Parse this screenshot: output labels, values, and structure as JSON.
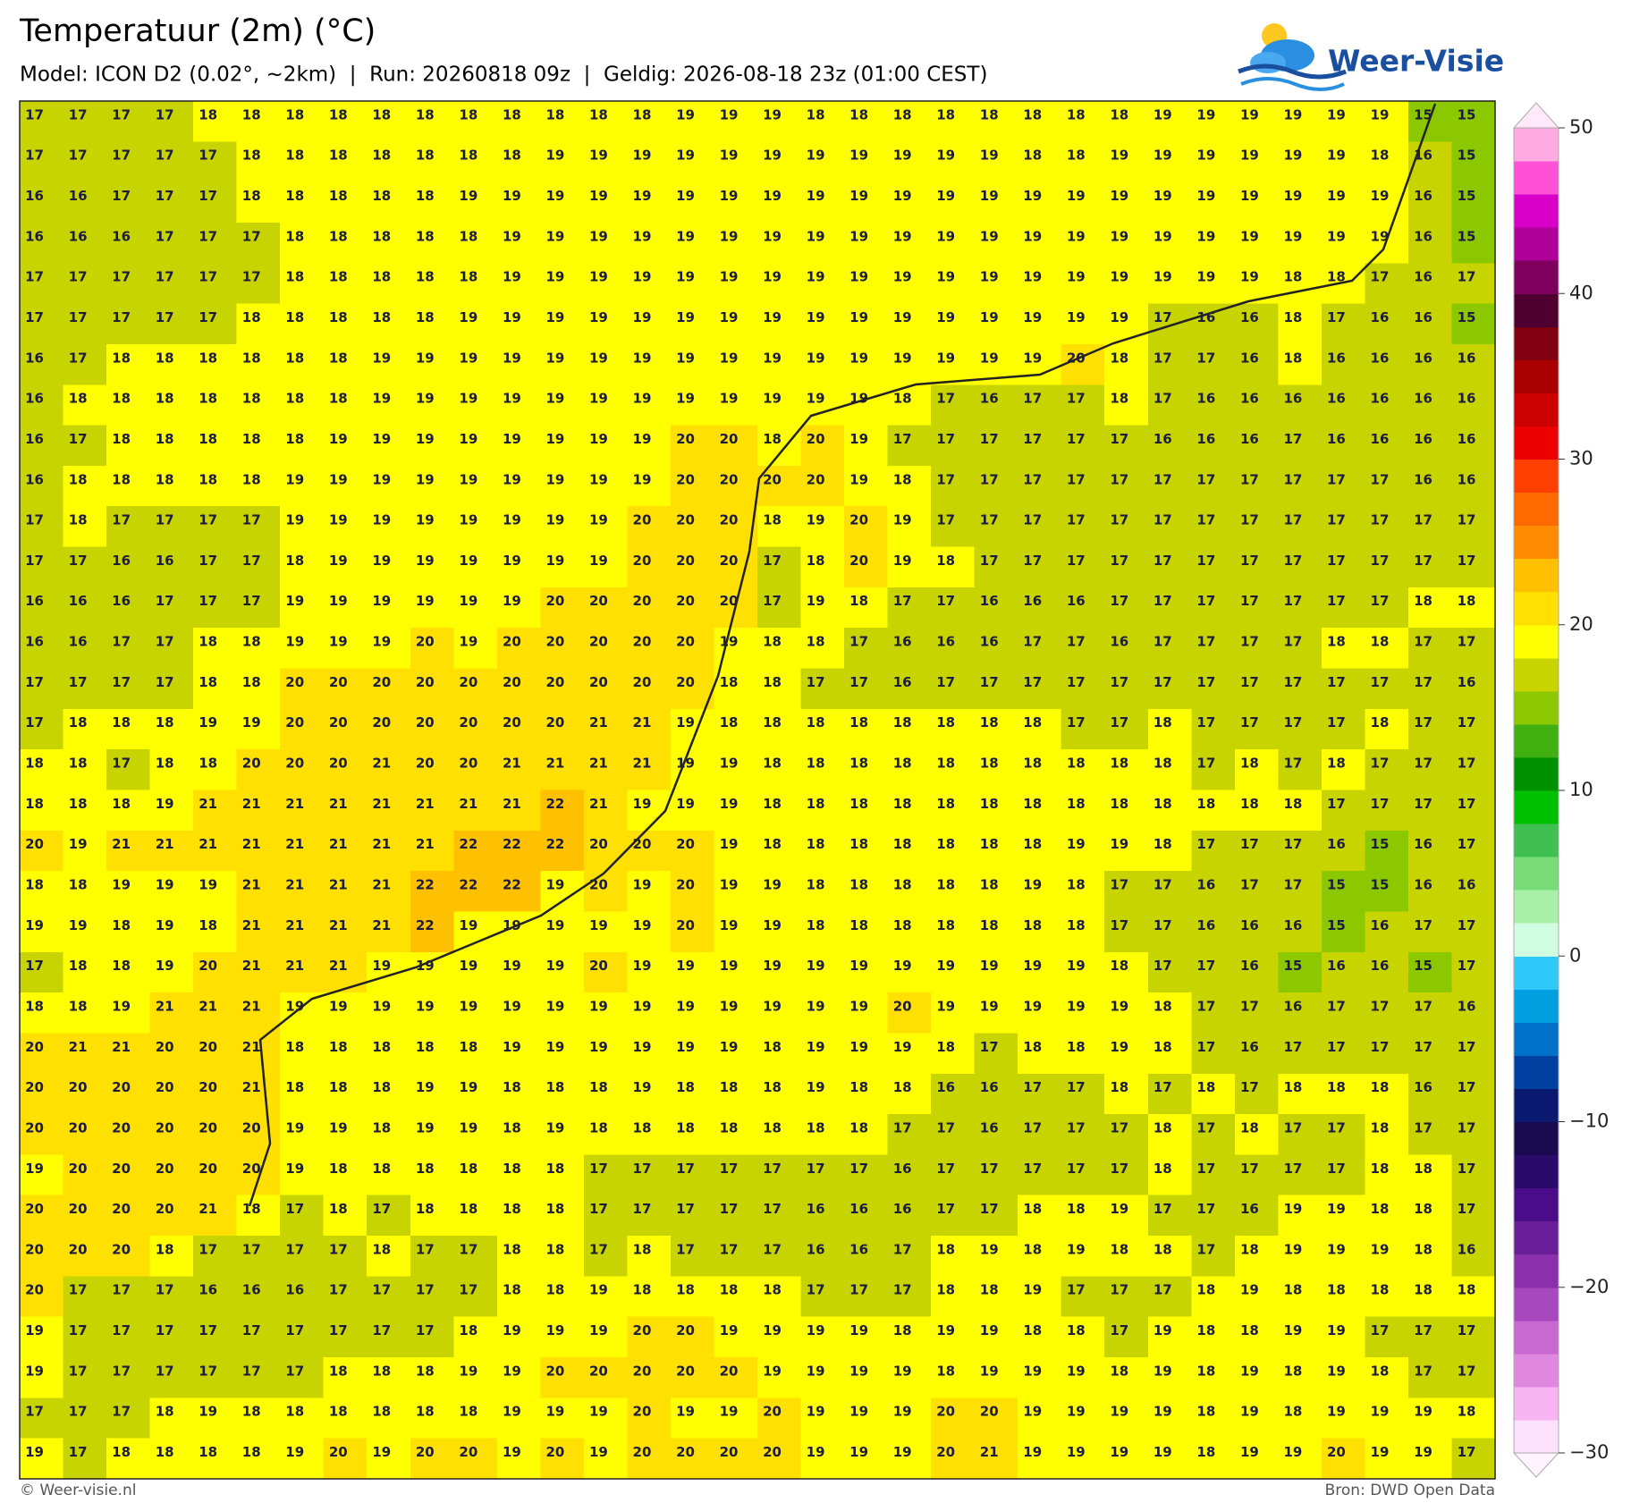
{
  "header": {
    "title": "Temperatuur (2m) (°C)",
    "subtitle": "Model: ICON D2 (0.02°, ~2km)  |  Run: 20260818 09z  |  Geldig: 2026-08-18 23z (01:00 CEST)",
    "logo": "Weer-Visie"
  },
  "chart_data": {
    "type": "heatmap",
    "values": [
      [
        17,
        17,
        17,
        17,
        18,
        18,
        18,
        18,
        18,
        18,
        18,
        18,
        18,
        18,
        18,
        19,
        19,
        19,
        18,
        18,
        18,
        18,
        18,
        18,
        18,
        18,
        19,
        19,
        19,
        19,
        19,
        19,
        15,
        15
      ],
      [
        17,
        17,
        17,
        17,
        17,
        18,
        18,
        18,
        18,
        18,
        18,
        18,
        19,
        19,
        19,
        19,
        19,
        19,
        19,
        19,
        19,
        19,
        19,
        18,
        18,
        19,
        19,
        19,
        19,
        19,
        19,
        18,
        16,
        15
      ],
      [
        16,
        16,
        17,
        17,
        17,
        18,
        18,
        18,
        18,
        18,
        19,
        19,
        19,
        19,
        19,
        19,
        19,
        19,
        19,
        19,
        19,
        19,
        19,
        19,
        19,
        19,
        19,
        19,
        19,
        19,
        19,
        19,
        16,
        15
      ],
      [
        16,
        16,
        16,
        17,
        17,
        17,
        18,
        18,
        18,
        18,
        18,
        19,
        19,
        19,
        19,
        19,
        19,
        19,
        19,
        19,
        19,
        19,
        19,
        19,
        19,
        19,
        19,
        19,
        19,
        19,
        19,
        19,
        16,
        15
      ],
      [
        17,
        17,
        17,
        17,
        17,
        17,
        18,
        18,
        18,
        18,
        18,
        19,
        19,
        19,
        19,
        19,
        19,
        19,
        19,
        19,
        19,
        19,
        19,
        19,
        19,
        19,
        19,
        19,
        19,
        18,
        18,
        17,
        16,
        17
      ],
      [
        17,
        17,
        17,
        17,
        17,
        18,
        18,
        18,
        18,
        18,
        19,
        19,
        19,
        19,
        19,
        19,
        19,
        19,
        19,
        19,
        19,
        19,
        19,
        19,
        19,
        19,
        17,
        16,
        16,
        18,
        17,
        16,
        16,
        15
      ],
      [
        16,
        17,
        18,
        18,
        18,
        18,
        18,
        18,
        19,
        19,
        19,
        19,
        19,
        19,
        19,
        19,
        19,
        19,
        19,
        19,
        19,
        19,
        19,
        19,
        20,
        18,
        17,
        17,
        16,
        18,
        16,
        16,
        16,
        16
      ],
      [
        16,
        18,
        18,
        18,
        18,
        18,
        18,
        18,
        19,
        19,
        19,
        19,
        19,
        19,
        19,
        19,
        19,
        19,
        19,
        19,
        18,
        17,
        16,
        17,
        17,
        18,
        17,
        16,
        16,
        16,
        16,
        16,
        16,
        16
      ],
      [
        16,
        17,
        18,
        18,
        18,
        18,
        18,
        19,
        19,
        19,
        19,
        19,
        19,
        19,
        19,
        20,
        20,
        18,
        20,
        19,
        17,
        17,
        17,
        17,
        17,
        17,
        16,
        16,
        16,
        17,
        16,
        16,
        16,
        16
      ],
      [
        16,
        18,
        18,
        18,
        18,
        18,
        19,
        19,
        19,
        19,
        19,
        19,
        19,
        19,
        19,
        20,
        20,
        20,
        20,
        19,
        18,
        17,
        17,
        17,
        17,
        17,
        17,
        17,
        17,
        17,
        17,
        17,
        16,
        16
      ],
      [
        17,
        18,
        17,
        17,
        17,
        17,
        19,
        19,
        19,
        19,
        19,
        19,
        19,
        19,
        20,
        20,
        20,
        18,
        19,
        20,
        19,
        17,
        17,
        17,
        17,
        17,
        17,
        17,
        17,
        17,
        17,
        17,
        17,
        17
      ],
      [
        17,
        17,
        16,
        16,
        17,
        17,
        18,
        19,
        19,
        19,
        19,
        19,
        19,
        19,
        20,
        20,
        20,
        17,
        18,
        20,
        19,
        18,
        17,
        17,
        17,
        17,
        17,
        17,
        17,
        17,
        17,
        17,
        17,
        17
      ],
      [
        16,
        16,
        16,
        17,
        17,
        17,
        19,
        19,
        19,
        19,
        19,
        19,
        20,
        20,
        20,
        20,
        20,
        17,
        19,
        18,
        17,
        17,
        16,
        16,
        16,
        17,
        17,
        17,
        17,
        17,
        17,
        17,
        18,
        18
      ],
      [
        16,
        16,
        17,
        17,
        18,
        18,
        19,
        19,
        19,
        20,
        19,
        20,
        20,
        20,
        20,
        20,
        19,
        18,
        18,
        17,
        16,
        16,
        16,
        17,
        17,
        16,
        17,
        17,
        17,
        17,
        18,
        18,
        17,
        17
      ],
      [
        17,
        17,
        17,
        17,
        18,
        18,
        20,
        20,
        20,
        20,
        20,
        20,
        20,
        20,
        20,
        20,
        18,
        18,
        17,
        17,
        16,
        17,
        17,
        17,
        17,
        17,
        17,
        17,
        17,
        17,
        17,
        17,
        17,
        16
      ],
      [
        17,
        18,
        18,
        18,
        19,
        19,
        20,
        20,
        20,
        20,
        20,
        20,
        20,
        21,
        21,
        19,
        18,
        18,
        18,
        18,
        18,
        18,
        18,
        18,
        17,
        17,
        18,
        17,
        17,
        17,
        17,
        18,
        17,
        17
      ],
      [
        18,
        18,
        17,
        18,
        18,
        20,
        20,
        20,
        21,
        20,
        20,
        21,
        21,
        21,
        21,
        19,
        19,
        18,
        18,
        18,
        18,
        18,
        18,
        18,
        18,
        18,
        18,
        17,
        18,
        17,
        18,
        17,
        17,
        17
      ],
      [
        18,
        18,
        18,
        19,
        21,
        21,
        21,
        21,
        21,
        21,
        21,
        21,
        22,
        21,
        19,
        19,
        19,
        18,
        18,
        18,
        18,
        18,
        18,
        18,
        18,
        18,
        18,
        18,
        18,
        18,
        17,
        17,
        17,
        17
      ],
      [
        20,
        19,
        21,
        21,
        21,
        21,
        21,
        21,
        21,
        21,
        22,
        22,
        22,
        20,
        20,
        20,
        19,
        18,
        18,
        18,
        18,
        18,
        18,
        18,
        19,
        19,
        18,
        17,
        17,
        17,
        16,
        15,
        16,
        17
      ],
      [
        18,
        18,
        19,
        19,
        19,
        21,
        21,
        21,
        21,
        22,
        22,
        22,
        19,
        20,
        19,
        20,
        19,
        19,
        18,
        18,
        18,
        18,
        18,
        19,
        18,
        17,
        17,
        16,
        17,
        17,
        15,
        15,
        16,
        16
      ],
      [
        19,
        19,
        18,
        19,
        18,
        21,
        21,
        21,
        21,
        22,
        19,
        19,
        19,
        19,
        19,
        20,
        19,
        19,
        18,
        18,
        18,
        18,
        18,
        18,
        18,
        17,
        17,
        16,
        16,
        16,
        15,
        16,
        17,
        17
      ],
      [
        17,
        18,
        18,
        19,
        20,
        21,
        21,
        21,
        19,
        19,
        19,
        19,
        19,
        20,
        19,
        19,
        19,
        19,
        19,
        19,
        19,
        19,
        19,
        19,
        19,
        18,
        17,
        17,
        16,
        15,
        16,
        16,
        15,
        17
      ],
      [
        18,
        18,
        19,
        21,
        21,
        21,
        19,
        19,
        19,
        19,
        19,
        19,
        19,
        19,
        19,
        19,
        19,
        19,
        19,
        19,
        20,
        19,
        19,
        19,
        19,
        19,
        18,
        17,
        17,
        16,
        17,
        17,
        17,
        16
      ],
      [
        20,
        21,
        21,
        20,
        20,
        21,
        18,
        18,
        18,
        18,
        18,
        19,
        19,
        19,
        19,
        19,
        19,
        18,
        19,
        19,
        19,
        18,
        17,
        18,
        18,
        19,
        18,
        17,
        16,
        17,
        17,
        17,
        17,
        17
      ],
      [
        20,
        20,
        20,
        20,
        20,
        21,
        18,
        18,
        18,
        19,
        19,
        18,
        18,
        18,
        19,
        18,
        18,
        18,
        19,
        18,
        18,
        16,
        16,
        17,
        17,
        18,
        17,
        18,
        17,
        18,
        18,
        18,
        16,
        17
      ],
      [
        20,
        20,
        20,
        20,
        20,
        20,
        19,
        19,
        18,
        19,
        19,
        18,
        19,
        18,
        18,
        18,
        18,
        18,
        18,
        18,
        17,
        17,
        16,
        17,
        17,
        17,
        18,
        17,
        18,
        17,
        17,
        18,
        17,
        17
      ],
      [
        19,
        20,
        20,
        20,
        20,
        20,
        19,
        18,
        18,
        18,
        18,
        18,
        18,
        17,
        17,
        17,
        17,
        17,
        17,
        17,
        16,
        17,
        17,
        17,
        17,
        17,
        18,
        17,
        17,
        17,
        17,
        18,
        18,
        17
      ],
      [
        20,
        20,
        20,
        20,
        21,
        18,
        17,
        18,
        17,
        18,
        18,
        18,
        18,
        17,
        17,
        17,
        17,
        17,
        16,
        16,
        16,
        17,
        17,
        18,
        18,
        19,
        17,
        17,
        16,
        19,
        19,
        18,
        18,
        17
      ],
      [
        20,
        20,
        20,
        18,
        17,
        17,
        17,
        17,
        18,
        17,
        17,
        18,
        18,
        17,
        18,
        17,
        17,
        17,
        16,
        16,
        17,
        18,
        19,
        18,
        19,
        18,
        18,
        17,
        18,
        19,
        19,
        19,
        18,
        16
      ],
      [
        20,
        17,
        17,
        17,
        16,
        16,
        16,
        17,
        17,
        17,
        17,
        18,
        18,
        19,
        18,
        18,
        18,
        18,
        17,
        17,
        17,
        18,
        18,
        19,
        17,
        17,
        17,
        18,
        19,
        18,
        18,
        18,
        18,
        18
      ],
      [
        19,
        17,
        17,
        17,
        17,
        17,
        17,
        17,
        17,
        17,
        18,
        19,
        19,
        19,
        20,
        20,
        19,
        19,
        19,
        19,
        18,
        19,
        19,
        18,
        18,
        17,
        19,
        18,
        18,
        19,
        19,
        17,
        17,
        17
      ],
      [
        19,
        17,
        17,
        17,
        17,
        17,
        17,
        18,
        18,
        18,
        19,
        19,
        20,
        20,
        20,
        20,
        20,
        19,
        19,
        19,
        19,
        18,
        19,
        19,
        19,
        18,
        19,
        18,
        19,
        18,
        19,
        18,
        17,
        17
      ],
      [
        17,
        17,
        17,
        18,
        19,
        18,
        18,
        18,
        18,
        18,
        18,
        19,
        19,
        19,
        20,
        19,
        19,
        20,
        19,
        19,
        19,
        20,
        20,
        19,
        19,
        19,
        19,
        18,
        19,
        18,
        19,
        19,
        19,
        18
      ],
      [
        19,
        17,
        18,
        18,
        18,
        18,
        19,
        20,
        19,
        20,
        20,
        19,
        20,
        19,
        20,
        20,
        20,
        20,
        19,
        19,
        19,
        20,
        21,
        19,
        19,
        19,
        19,
        18,
        19,
        19,
        20,
        19,
        19,
        17
      ]
    ],
    "colorbar": {
      "ylim": [
        -30,
        50
      ],
      "yticks": [
        50,
        40,
        30,
        20,
        10,
        0,
        {
          "value": -10,
          "label": "−10"
        },
        {
          "value": -20,
          "label": "−20"
        },
        {
          "value": -30,
          "label": "−30"
        }
      ],
      "colors": [
        "#fde0fb",
        "#f8b4f0",
        "#e088e0",
        "#c868d0",
        "#a848be",
        "#8a30aa",
        "#6a1e98",
        "#4a0c88",
        "#2a0a6a",
        "#1a0a50",
        "#0a1a70",
        "#0040a0",
        "#0070c8",
        "#00a0e0",
        "#30c8f8",
        "#d0fce0",
        "#a8f0a8",
        "#78dc78",
        "#40c050",
        "#00c000",
        "#009000",
        "#40b010",
        "#8cc800",
        "#c8d400",
        "#ffff00",
        "#ffe000",
        "#ffc000",
        "#ff8c00",
        "#ff6a00",
        "#ff4000",
        "#ee0000",
        "#cc0000",
        "#aa0000",
        "#800010",
        "#500030",
        "#800060",
        "#b0009a",
        "#d800c8",
        "#ff50d8",
        "#ffaae0"
      ]
    }
  },
  "footer": {
    "left": "© Weer-visie.nl",
    "right": "Bron: DWD Open Data"
  }
}
